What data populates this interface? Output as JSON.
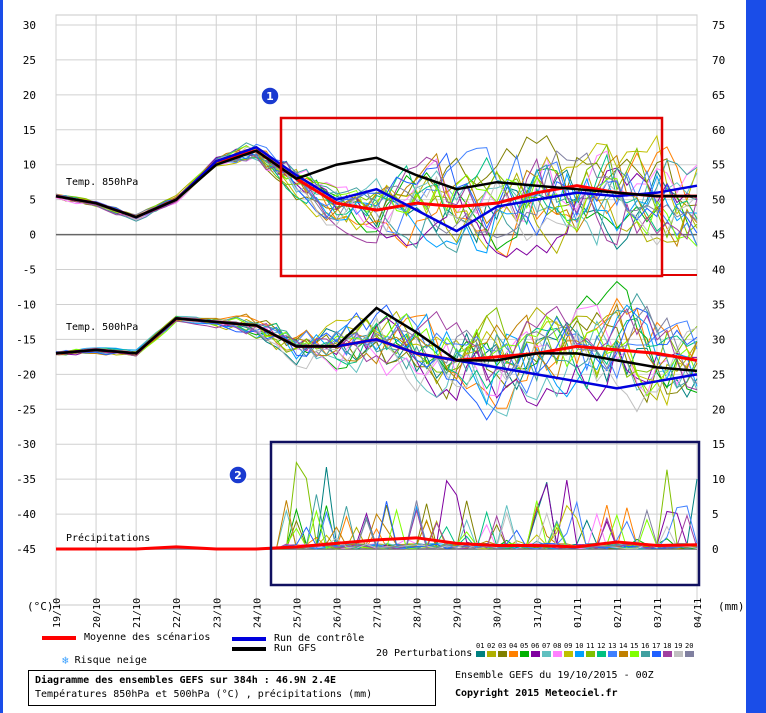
{
  "chart_data": {
    "type": "line",
    "title": "Diagramme des ensembles GEFS sur 384h : 46.9N 2.4E",
    "subtitle": "Températures 850hPa et 500hPa (°C) , précipitations (mm)",
    "x": [
      "19/10",
      "20/10",
      "21/10",
      "22/10",
      "23/10",
      "24/10",
      "25/10",
      "26/10",
      "27/10",
      "28/10",
      "29/10",
      "30/10",
      "31/10",
      "01/11",
      "02/11",
      "03/11",
      "04/11"
    ],
    "left_axis": {
      "unit": "(°C)",
      "ticks": [
        30,
        25,
        20,
        15,
        10,
        5,
        0,
        -5,
        -10,
        -15,
        -20,
        -25,
        -30,
        -35,
        -40,
        -45
      ],
      "range": [
        -45,
        30
      ]
    },
    "right_axis": {
      "unit": "(mm)",
      "ticks": [
        75,
        70,
        65,
        60,
        55,
        50,
        45,
        40,
        35,
        30,
        25,
        20,
        15,
        10,
        5,
        0
      ],
      "range": [
        0,
        75
      ]
    },
    "panels": [
      {
        "label": "Temp. 850hPa",
        "series": [
          {
            "name": "Moyenne des scénarios",
            "color": "#ff0000",
            "values": [
              5.5,
              4.5,
              2.5,
              5,
              10.5,
              12,
              8,
              4.5,
              3.5,
              4.5,
              4,
              4.5,
              6,
              7,
              6,
              5.5,
              5.5
            ]
          },
          {
            "name": "Run de contrôle",
            "color": "#0000dd",
            "values": [
              5.5,
              4.5,
              2.5,
              5,
              10.5,
              12.5,
              8.5,
              5,
              6.5,
              3.5,
              0.5,
              4,
              5,
              6,
              5.5,
              6,
              7
            ]
          },
          {
            "name": "Run GFS",
            "color": "#000000",
            "values": [
              5.5,
              4.5,
              2.5,
              5,
              10,
              12,
              8,
              10,
              11,
              8.5,
              6.5,
              7.5,
              7,
              6.5,
              6,
              5.5,
              5.5
            ]
          }
        ]
      },
      {
        "label": "Temp. 500hPa",
        "series": [
          {
            "name": "Moyenne des scénarios",
            "color": "#ff0000",
            "values": [
              -17,
              -16.5,
              -17,
              -12,
              -12.5,
              -13,
              -16,
              -16,
              -15,
              -17,
              -18,
              -17.5,
              -17,
              -16,
              -16.5,
              -17,
              -18
            ]
          },
          {
            "name": "Run de contrôle",
            "color": "#0000dd",
            "values": [
              -17,
              -16.5,
              -17,
              -12,
              -12.5,
              -13,
              -16,
              -16,
              -15,
              -17,
              -18,
              -19,
              -20,
              -21,
              -22,
              -21,
              -20
            ]
          },
          {
            "name": "Run GFS",
            "color": "#000000",
            "values": [
              -17,
              -16.5,
              -17,
              -12,
              -12.5,
              -13,
              -16,
              -16,
              -10.5,
              -14,
              -18,
              -18,
              -17,
              -17,
              -18,
              -19,
              -19.5
            ]
          }
        ]
      },
      {
        "label": "Précipitations",
        "series": [
          {
            "name": "Moyenne des scénarios",
            "color": "#ff0000",
            "values": [
              0,
              0,
              0,
              0.3,
              0,
              0,
              0.3,
              0.8,
              1.3,
              1.6,
              0.8,
              0.5,
              0.5,
              0.3,
              1,
              0.5,
              0.6
            ]
          }
        ]
      }
    ],
    "annotations": [
      "1",
      "2"
    ]
  },
  "legend": {
    "mean": "Moyenne des scénarios",
    "control": "Run de contrôle",
    "gfs": "Run GFS",
    "snow": "Risque neige",
    "perturbations": "20 Perturbations",
    "pert_numbers": [
      "01",
      "02",
      "03",
      "04",
      "05",
      "06",
      "07",
      "08",
      "09",
      "10",
      "11",
      "12",
      "13",
      "14",
      "15",
      "16",
      "17",
      "18",
      "19",
      "20"
    ],
    "pert_colors": [
      "#008080",
      "#b0b000",
      "#808000",
      "#ff8000",
      "#00b000",
      "#8000a0",
      "#60c0c0",
      "#ff80ff",
      "#c0c000",
      "#00a0ff",
      "#80c000",
      "#00c080",
      "#4080ff",
      "#c08000",
      "#80ff00",
      "#40a0a0",
      "#2060ff",
      "#a040a0",
      "#c0c0c0",
      "#8080a0"
    ]
  },
  "info": {
    "title": "Diagramme des ensembles GEFS sur 384h : 46.9N 2.4E",
    "subtitle": "Températures 850hPa et 500hPa (°C) , précipitations (mm)",
    "run": "Ensemble GEFS du 19/10/2015 - 00Z",
    "copyright": "Copyright 2015 Meteociel.fr"
  }
}
